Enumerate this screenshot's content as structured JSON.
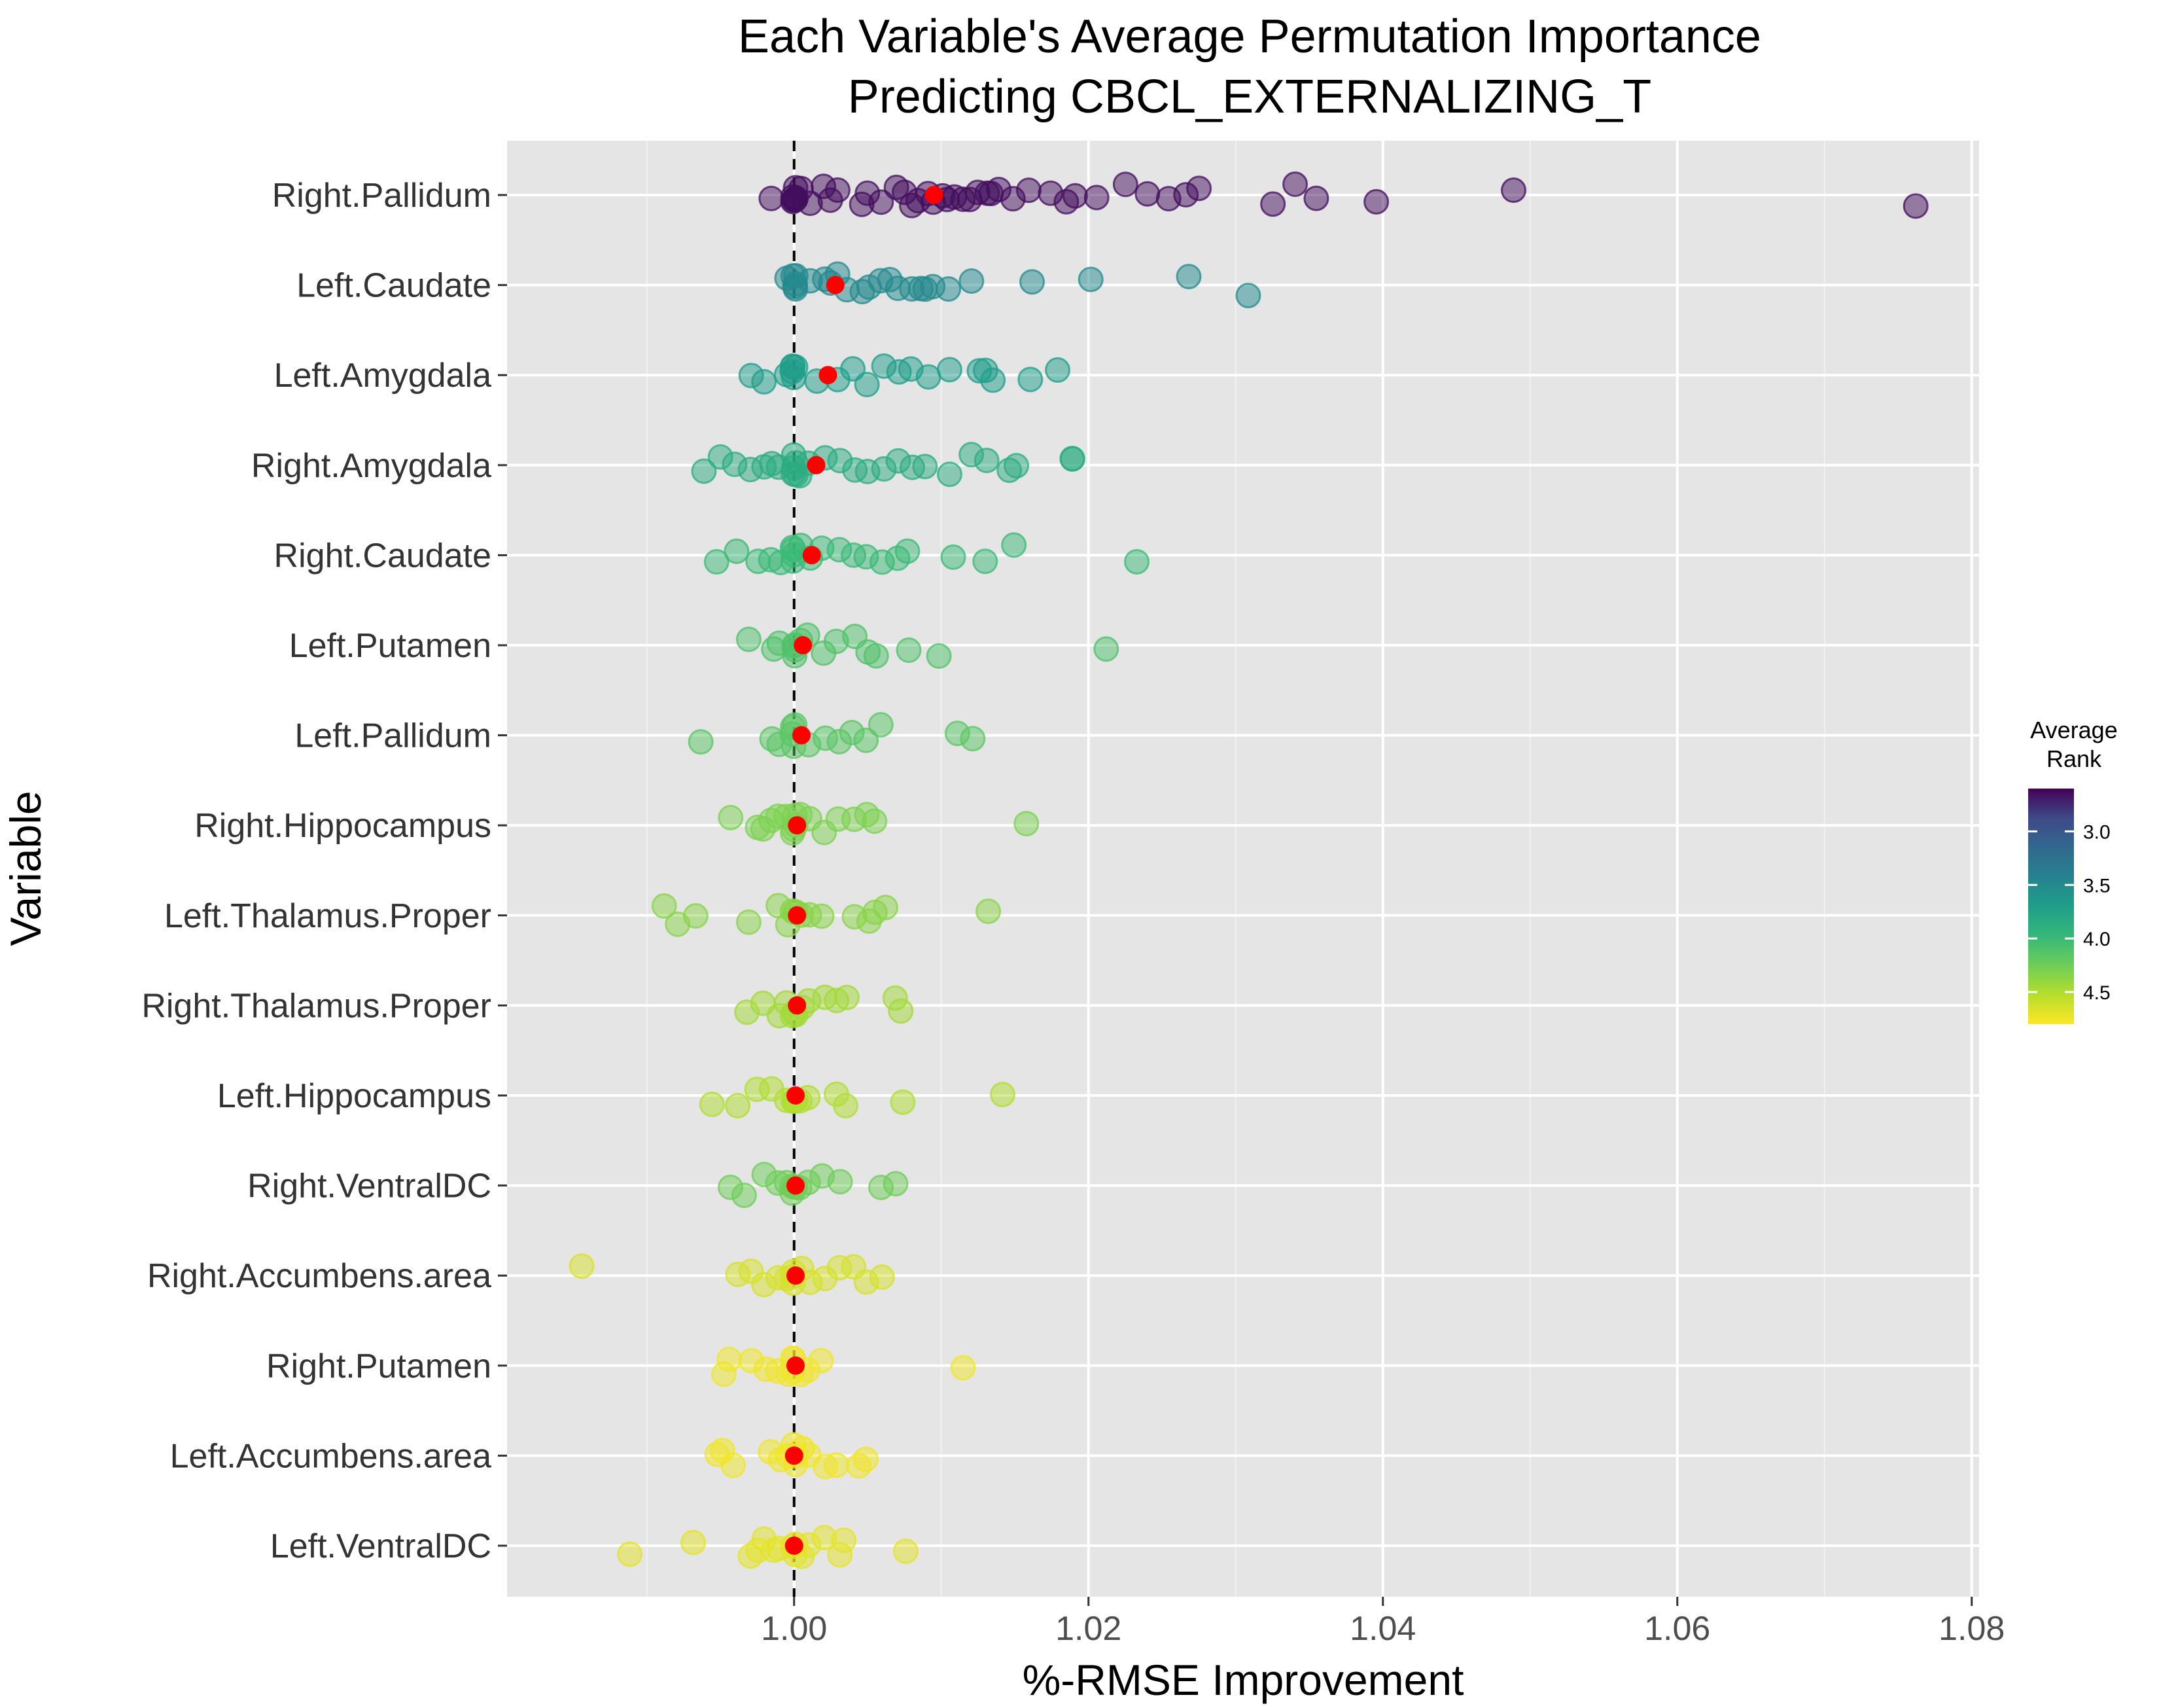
{
  "chart_data": {
    "type": "scatter",
    "title": "Each Variable's Average Permutation Importance",
    "subtitle": "Predicting CBCL_EXTERNALIZING_T",
    "xlabel": "%-RMSE Improvement",
    "ylabel": "Variable",
    "xlim": [
      0.9805,
      1.0805
    ],
    "x_ticks": [
      "1.00",
      "1.02",
      "1.04",
      "1.06",
      "1.08"
    ],
    "x_tick_values": [
      1.0,
      1.02,
      1.04,
      1.06,
      1.08
    ],
    "reference_line": 1.0,
    "grid": true,
    "legend": {
      "title_line1": "Average",
      "title_line2": "Rank",
      "placement": "right",
      "range": [
        2.6,
        4.8
      ],
      "ticks": [
        "3.0",
        "3.5",
        "4.0",
        "4.5"
      ],
      "tick_values": [
        3.0,
        3.5,
        4.0,
        4.5
      ]
    },
    "categories": [
      "Right.Pallidum",
      "Left.Caudate",
      "Left.Amygdala",
      "Right.Amygdala",
      "Right.Caudate",
      "Left.Putamen",
      "Left.Pallidum",
      "Right.Hippocampus",
      "Left.Thalamus.Proper",
      "Right.Thalamus.Proper",
      "Left.Hippocampus",
      "Right.VentralDC",
      "Right.Accumbens.area",
      "Right.Putamen",
      "Left.Accumbens.area",
      "Left.VentralDC"
    ],
    "series": [
      {
        "category": "Right.Pallidum",
        "rank": 2.65,
        "mean": 1.0095,
        "points": [
          0.9985,
          1.0,
          1.0,
          1.0,
          1.0,
          1.0,
          1.0,
          1.0,
          1.0004,
          1.001,
          1.002,
          1.0025,
          1.003,
          1.0045,
          1.005,
          1.006,
          1.007,
          1.0075,
          1.008,
          1.0085,
          1.009,
          1.0095,
          1.01,
          1.0105,
          1.011,
          1.0115,
          1.012,
          1.0125,
          1.013,
          1.0135,
          1.014,
          1.015,
          1.016,
          1.0175,
          1.0185,
          1.019,
          1.0205,
          1.0225,
          1.024,
          1.0255,
          1.0265,
          1.0275,
          1.0325,
          1.034,
          1.0355,
          1.0395,
          1.0488,
          1.0762
        ]
      },
      {
        "category": "Left.Caudate",
        "rank": 3.5,
        "mean": 1.0028,
        "points": [
          0.9995,
          1.0,
          1.0,
          1.0,
          1.0,
          1.0,
          1.001,
          1.002,
          1.0025,
          1.003,
          1.0035,
          1.0045,
          1.005,
          1.006,
          1.0065,
          1.007,
          1.008,
          1.0085,
          1.009,
          1.0095,
          1.0105,
          1.012,
          1.0162,
          1.0202,
          1.0268,
          1.0308
        ]
      },
      {
        "category": "Left.Amygdala",
        "rank": 3.7,
        "mean": 1.0023,
        "points": [
          0.997,
          0.998,
          0.9995,
          1.0,
          1.0,
          1.0,
          1.0,
          1.0,
          1.0015,
          1.003,
          1.004,
          1.005,
          1.006,
          1.007,
          1.008,
          1.009,
          1.0105,
          1.0125,
          1.013,
          1.0135,
          1.016,
          1.018
        ]
      },
      {
        "category": "Right.Amygdala",
        "rank": 3.85,
        "mean": 1.0015,
        "points": [
          0.994,
          0.995,
          0.996,
          0.997,
          0.998,
          0.9985,
          0.999,
          1.0,
          1.0,
          1.0,
          1.0,
          1.0,
          1.0005,
          1.001,
          1.002,
          1.003,
          1.004,
          1.005,
          1.006,
          1.007,
          1.008,
          1.009,
          1.0105,
          1.012,
          1.013,
          1.0145,
          1.015,
          1.019,
          1.0188
        ]
      },
      {
        "category": "Right.Caudate",
        "rank": 4.0,
        "mean": 1.0012,
        "points": [
          0.9948,
          0.996,
          0.9975,
          0.9985,
          0.999,
          1.0,
          1.0,
          1.0,
          1.0,
          1.0005,
          1.001,
          1.002,
          1.003,
          1.004,
          1.005,
          1.006,
          1.007,
          1.0078,
          1.0108,
          1.013,
          1.0148,
          1.0232
        ]
      },
      {
        "category": "Left.Putamen",
        "rank": 4.1,
        "mean": 1.0006,
        "points": [
          0.997,
          0.9985,
          0.999,
          1.0,
          1.0,
          1.0,
          1.0,
          1.0005,
          1.001,
          1.002,
          1.003,
          1.004,
          1.005,
          1.0055,
          1.0077,
          1.0098,
          1.0213
        ]
      },
      {
        "category": "Left.Pallidum",
        "rank": 4.15,
        "mean": 1.0005,
        "points": [
          0.9937,
          0.9985,
          0.999,
          1.0,
          1.0,
          1.0,
          1.0,
          1.001,
          1.002,
          1.003,
          1.004,
          1.005,
          1.0058,
          1.011,
          1.0122
        ]
      },
      {
        "category": "Right.Hippocampus",
        "rank": 4.3,
        "mean": 1.0002,
        "points": [
          0.9958,
          0.9975,
          0.998,
          0.9985,
          0.999,
          0.9995,
          1.0,
          1.0,
          1.0,
          1.0,
          1.0005,
          1.001,
          1.002,
          1.003,
          1.004,
          1.005,
          1.0055,
          1.0158
        ]
      },
      {
        "category": "Left.Thalamus.Proper",
        "rank": 4.35,
        "mean": 1.0002,
        "points": [
          0.9913,
          0.9922,
          0.9932,
          0.997,
          0.999,
          0.9995,
          1.0,
          1.0,
          1.0,
          1.0005,
          1.001,
          1.002,
          1.004,
          1.005,
          1.0055,
          1.0062,
          1.0132
        ]
      },
      {
        "category": "Right.Thalamus.Proper",
        "rank": 4.45,
        "mean": 1.0002,
        "points": [
          0.9968,
          0.9978,
          0.999,
          0.9995,
          1.0,
          1.0,
          1.0,
          1.0005,
          1.001,
          1.002,
          1.003,
          1.0035,
          1.007,
          1.0073
        ]
      },
      {
        "category": "Left.Hippocampus",
        "rank": 4.5,
        "mean": 1.0001,
        "points": [
          0.9945,
          0.9962,
          0.9975,
          0.9985,
          0.9995,
          1.0,
          1.0,
          1.0,
          1.0005,
          1.001,
          1.003,
          1.0035,
          1.0073,
          1.0141
        ]
      },
      {
        "category": "Right.VentralDC",
        "rank": 4.25,
        "mean": 1.0001,
        "points": [
          0.9958,
          0.9967,
          0.998,
          0.999,
          0.9995,
          1.0,
          1.0,
          1.0,
          1.0005,
          1.001,
          1.002,
          1.003,
          1.0058,
          1.0068
        ]
      },
      {
        "category": "Right.Accumbens.area",
        "rank": 4.65,
        "mean": 1.0001,
        "points": [
          0.9855,
          0.9962,
          0.997,
          0.998,
          0.999,
          0.9995,
          1.0,
          1.0,
          1.0,
          1.0005,
          1.001,
          1.002,
          1.003,
          1.004,
          1.005,
          1.006
        ]
      },
      {
        "category": "Right.Putamen",
        "rank": 4.75,
        "mean": 1.0001,
        "points": [
          0.9952,
          0.9955,
          0.997,
          0.998,
          0.999,
          0.9995,
          1.0,
          1.0,
          1.0,
          1.0005,
          1.001,
          1.0018,
          1.0115
        ]
      },
      {
        "category": "Left.Accumbens.area",
        "rank": 4.75,
        "mean": 1.0,
        "points": [
          0.9948,
          0.9952,
          0.9958,
          0.9985,
          0.999,
          0.9995,
          1.0,
          1.0,
          1.0,
          1.0005,
          1.001,
          1.002,
          1.003,
          1.0045,
          1.0048
        ]
      },
      {
        "category": "Left.VentralDC",
        "rank": 4.7,
        "mean": 1.0,
        "points": [
          0.9888,
          0.9932,
          0.997,
          0.9975,
          0.998,
          0.9985,
          0.999,
          1.0,
          1.0,
          1.0,
          1.0005,
          1.001,
          1.002,
          1.003,
          1.0033,
          1.0077
        ]
      }
    ]
  }
}
